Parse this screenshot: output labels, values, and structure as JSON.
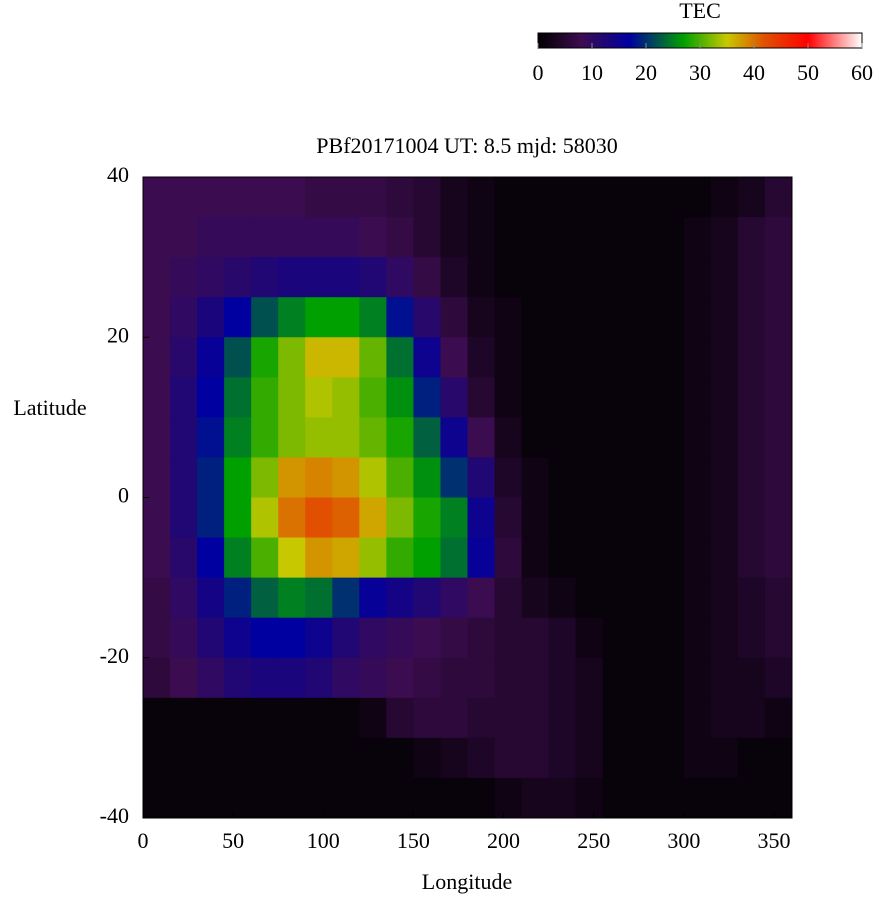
{
  "chart_data": {
    "type": "heatmap",
    "title": "PBf20171004  UT: 8.5  mjd: 58030",
    "x_label": "Longitude",
    "y_label": "Latitude",
    "x": [
      7.5,
      22.5,
      37.5,
      52.5,
      67.5,
      82.5,
      97.5,
      112.5,
      127.5,
      142.5,
      157.5,
      172.5,
      187.5,
      202.5,
      217.5,
      232.5,
      247.5,
      262.5,
      277.5,
      292.5,
      307.5,
      322.5,
      337.5,
      352.5
    ],
    "y": [
      37.5,
      32.5,
      27.5,
      22.5,
      17.5,
      12.5,
      7.5,
      2.5,
      -2.5,
      -7.5,
      -12.5,
      -17.5,
      -22.5,
      -27.5,
      -32.5,
      -37.5
    ],
    "z": [
      [
        8,
        8,
        8,
        8,
        8,
        8,
        7,
        7,
        7,
        6,
        5,
        3,
        2,
        1,
        1,
        1,
        1,
        1,
        1,
        1,
        1,
        2,
        3,
        5
      ],
      [
        8,
        8,
        9,
        9,
        9,
        9,
        9,
        9,
        8,
        7,
        5,
        3,
        2,
        1,
        1,
        1,
        1,
        1,
        1,
        1,
        2,
        3,
        5,
        6
      ],
      [
        8,
        9,
        10,
        11,
        12,
        13,
        13,
        13,
        12,
        10,
        7,
        4,
        2,
        1,
        1,
        1,
        1,
        1,
        1,
        1,
        2,
        3,
        5,
        6
      ],
      [
        8,
        10,
        13,
        17,
        22,
        25,
        27,
        27,
        25,
        18,
        11,
        6,
        3,
        2,
        1,
        1,
        1,
        1,
        1,
        1,
        2,
        3,
        5,
        6
      ],
      [
        8,
        11,
        16,
        22,
        28,
        32,
        36,
        36,
        31,
        24,
        15,
        8,
        4,
        2,
        1,
        1,
        1,
        1,
        1,
        1,
        2,
        3,
        5,
        6
      ],
      [
        8,
        12,
        17,
        24,
        29,
        32,
        34,
        33,
        30,
        26,
        19,
        11,
        5,
        2,
        1,
        1,
        1,
        1,
        1,
        1,
        2,
        3,
        5,
        6
      ],
      [
        8,
        12,
        18,
        25,
        29,
        32,
        33,
        33,
        31,
        28,
        23,
        15,
        8,
        3,
        1,
        1,
        1,
        1,
        1,
        1,
        2,
        3,
        5,
        6
      ],
      [
        8,
        12,
        19,
        27,
        32,
        38,
        39,
        38,
        34,
        30,
        26,
        20,
        12,
        4,
        2,
        1,
        1,
        1,
        1,
        1,
        2,
        3,
        5,
        6
      ],
      [
        8,
        12,
        19,
        27,
        34,
        40,
        42,
        41,
        37,
        32,
        28,
        25,
        15,
        5,
        2,
        1,
        1,
        1,
        1,
        1,
        2,
        3,
        5,
        6
      ],
      [
        8,
        11,
        17,
        25,
        30,
        35,
        38,
        37,
        33,
        29,
        27,
        24,
        16,
        6,
        2,
        1,
        1,
        1,
        1,
        1,
        2,
        3,
        5,
        6
      ],
      [
        7,
        10,
        14,
        19,
        23,
        25,
        24,
        20,
        16,
        14,
        12,
        10,
        8,
        5,
        3,
        2,
        1,
        1,
        1,
        1,
        2,
        3,
        4,
        5
      ],
      [
        7,
        9,
        12,
        15,
        17,
        17,
        15,
        12,
        10,
        9,
        8,
        7,
        6,
        5,
        5,
        4,
        2,
        1,
        1,
        1,
        2,
        3,
        4,
        5
      ],
      [
        6,
        8,
        10,
        12,
        13,
        13,
        12,
        10,
        9,
        8,
        7,
        6,
        6,
        5,
        5,
        4,
        3,
        1,
        1,
        1,
        2,
        3,
        3,
        4
      ],
      [
        1,
        1,
        1,
        1,
        1,
        1,
        1,
        1,
        2,
        5,
        6,
        6,
        5,
        5,
        5,
        4,
        3,
        1,
        1,
        1,
        2,
        3,
        3,
        2
      ],
      [
        1,
        1,
        1,
        1,
        1,
        1,
        1,
        1,
        1,
        1,
        2,
        3,
        4,
        5,
        5,
        4,
        3,
        1,
        1,
        1,
        2,
        2,
        1,
        1
      ],
      [
        1,
        1,
        1,
        1,
        1,
        1,
        1,
        1,
        1,
        1,
        1,
        1,
        1,
        2,
        3,
        3,
        2,
        1,
        1,
        1,
        1,
        1,
        1,
        1
      ]
    ],
    "xlim": [
      0,
      360
    ],
    "xticks": [
      0,
      50,
      100,
      150,
      200,
      250,
      300,
      350
    ],
    "ylim": [
      -40,
      40
    ],
    "yticks": [
      -40,
      -20,
      0,
      20,
      40
    ],
    "colorbar": {
      "title": "TEC",
      "lim": [
        0,
        60
      ],
      "ticks": [
        0,
        10,
        20,
        30,
        40,
        50,
        60
      ]
    },
    "colormap": [
      {
        "value": 0,
        "color": "#000000"
      },
      {
        "value": 8,
        "color": "#3c0c50"
      },
      {
        "value": 17,
        "color": "#0000a0"
      },
      {
        "value": 27,
        "color": "#00a000"
      },
      {
        "value": 35,
        "color": "#c8c800"
      },
      {
        "value": 42,
        "color": "#e05000"
      },
      {
        "value": 50,
        "color": "#ff0000"
      },
      {
        "value": 60,
        "color": "#ffffff"
      }
    ]
  }
}
